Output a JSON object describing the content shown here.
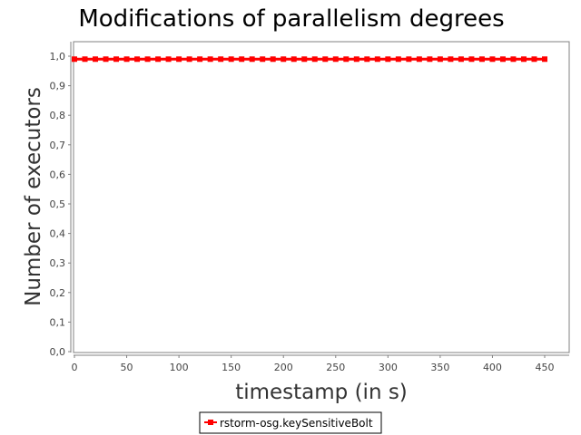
{
  "chart_data": {
    "type": "line",
    "title": "Modifications of parallelism degrees",
    "xlabel": "timestamp (in s)",
    "ylabel": "Number of executors",
    "xlim": [
      0,
      470
    ],
    "ylim": [
      0.0,
      1.05
    ],
    "x_ticks": [
      0,
      50,
      100,
      150,
      200,
      250,
      300,
      350,
      400,
      450
    ],
    "y_ticks": [
      "0,0",
      "0,1",
      "0,2",
      "0,3",
      "0,4",
      "0,5",
      "0,6",
      "0,7",
      "0,8",
      "0,9",
      "1,0"
    ],
    "grid": false,
    "legend_position": "bottom",
    "series": [
      {
        "name": "rstorm-osg.keySensitiveBolt",
        "color": "#ff0000",
        "x": [
          0,
          10,
          20,
          30,
          40,
          50,
          60,
          70,
          80,
          90,
          100,
          110,
          120,
          130,
          140,
          150,
          160,
          170,
          180,
          190,
          200,
          210,
          220,
          230,
          240,
          250,
          260,
          270,
          280,
          290,
          300,
          310,
          320,
          330,
          340,
          350,
          360,
          370,
          380,
          390,
          400,
          410,
          420,
          430,
          440,
          450
        ],
        "values": [
          1,
          1,
          1,
          1,
          1,
          1,
          1,
          1,
          1,
          1,
          1,
          1,
          1,
          1,
          1,
          1,
          1,
          1,
          1,
          1,
          1,
          1,
          1,
          1,
          1,
          1,
          1,
          1,
          1,
          1,
          1,
          1,
          1,
          1,
          1,
          1,
          1,
          1,
          1,
          1,
          1,
          1,
          1,
          1,
          1,
          1
        ]
      }
    ]
  }
}
